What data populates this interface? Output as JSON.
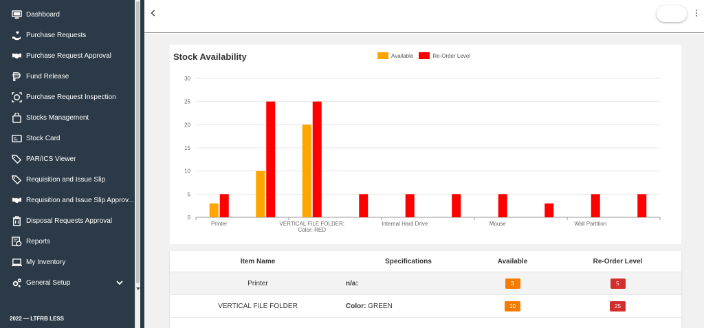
{
  "sidebar": {
    "items": [
      {
        "label": "Dashboard",
        "icon": "monitor-icon"
      },
      {
        "label": "Purchase Requests",
        "icon": "hand-heart-icon"
      },
      {
        "label": "Purchase Request Approval",
        "icon": "handshake-icon"
      },
      {
        "label": "Fund Release",
        "icon": "money-icon"
      },
      {
        "label": "Purchase Request Inspection",
        "icon": "inspect-icon"
      },
      {
        "label": "Stocks Management",
        "icon": "bag-icon"
      },
      {
        "label": "Stock Card",
        "icon": "card-icon"
      },
      {
        "label": "PAR/ICS Viewer",
        "icon": "tags-icon"
      },
      {
        "label": "Requisition and Issue Slip",
        "icon": "tag-icon"
      },
      {
        "label": "Requisition and Issue Slip Approv...",
        "icon": "handshake-icon"
      },
      {
        "label": "Disposal Requests Approval",
        "icon": "trash-icon"
      },
      {
        "label": "Reports",
        "icon": "reports-icon"
      },
      {
        "label": "My Inventory",
        "icon": "laptop-icon"
      },
      {
        "label": "General Setup",
        "icon": "gears-icon"
      }
    ],
    "footer": "2022 — LTFRB LESS"
  },
  "header": {
    "back_icon": "chevron-left-icon",
    "menu_icon": "kebab-icon"
  },
  "chart_data": {
    "type": "bar",
    "title": "Stock Availability",
    "categories": [
      "Printer",
      "",
      "VERTICAL FILE FOLDER; Color: RED",
      "",
      "Internal Hard Drive",
      "",
      "Mouse",
      "",
      "Wall Partition",
      ""
    ],
    "tick_labels": [
      "Printer",
      "VERTICAL FILE FOLDER;",
      "Color: RED",
      "Internal Hard Drive",
      "Mouse",
      "Wall Partition"
    ],
    "series": [
      {
        "name": "Available",
        "color": "#ffa500",
        "values": [
          3,
          10,
          20,
          0,
          0,
          0,
          0,
          0,
          0,
          0
        ]
      },
      {
        "name": "Re-Order Level",
        "color": "#ff0000",
        "values": [
          5,
          25,
          25,
          5,
          5,
          5,
          5,
          3,
          5,
          5
        ]
      }
    ],
    "yticks": [
      0,
      5,
      10,
      15,
      20,
      25,
      30
    ],
    "ylim": [
      0,
      30
    ],
    "legend": "top",
    "grid": true
  },
  "table": {
    "headers": [
      "Item Name",
      "Specifications",
      "Available",
      "Re-Order Level"
    ],
    "rows": [
      {
        "name": "Printer",
        "spec_key": "n/a:",
        "spec_val": "",
        "available": "3",
        "reorder": "5"
      },
      {
        "name": "VERTICAL FILE FOLDER",
        "spec_key": "Color:",
        "spec_val": " GREEN",
        "available": "10",
        "reorder": "25"
      }
    ],
    "badge_colors": {
      "available": "#f57c00",
      "reorder": "#d32f2f"
    }
  }
}
